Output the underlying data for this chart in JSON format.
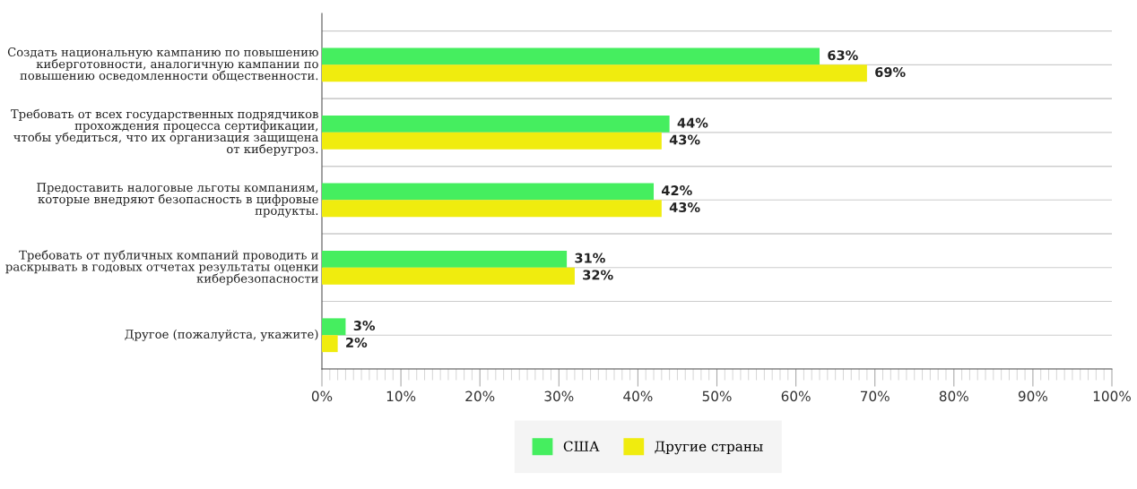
{
  "chart_data": {
    "type": "bar",
    "orientation": "horizontal",
    "categories": [
      "Создать национальную кампанию по повышению\nкиберготовности, аналогичную кампании по\nповышению осведомленности общественности.",
      "Требовать от всех государственных подрядчиков\nпрохождения процесса сертификации,\nчтобы убедиться, что их организация защищена\nот киберугроз.",
      "Предоставить налоговые льготы компаниям,\nкоторые внедряют безопасность в цифровые\nпродукты.",
      "Требовать от публичных компаний проводить и\nраскрывать в годовых отчетах результаты оценки\nкибербезопасности",
      "Другое (пожалуйста, укажите)"
    ],
    "series": [
      {
        "name": "США",
        "color": "#45ee5f",
        "values": [
          63,
          44,
          42,
          31,
          3
        ]
      },
      {
        "name": "Другие страны",
        "color": "#f0ec0e",
        "values": [
          69,
          43,
          43,
          32,
          2
        ]
      }
    ],
    "xlim": [
      0,
      100
    ],
    "xticks": [
      {
        "value": 0,
        "label": "0%"
      },
      {
        "value": 10,
        "label": "10%"
      },
      {
        "value": 20,
        "label": "20%"
      },
      {
        "value": 30,
        "label": "30%"
      },
      {
        "value": 40,
        "label": "40%"
      },
      {
        "value": 50,
        "label": "50%"
      },
      {
        "value": 60,
        "label": "60%"
      },
      {
        "value": 70,
        "label": "70%"
      },
      {
        "value": 80,
        "label": "80%"
      },
      {
        "value": 90,
        "label": "90%"
      },
      {
        "value": 100,
        "label": "100%"
      }
    ],
    "value_labels": [
      [
        "63%",
        "44%",
        "42%",
        "31%",
        "3%"
      ],
      [
        "69%",
        "43%",
        "43%",
        "32%",
        "2%"
      ]
    ],
    "grid": "y",
    "legend": "bottom"
  }
}
